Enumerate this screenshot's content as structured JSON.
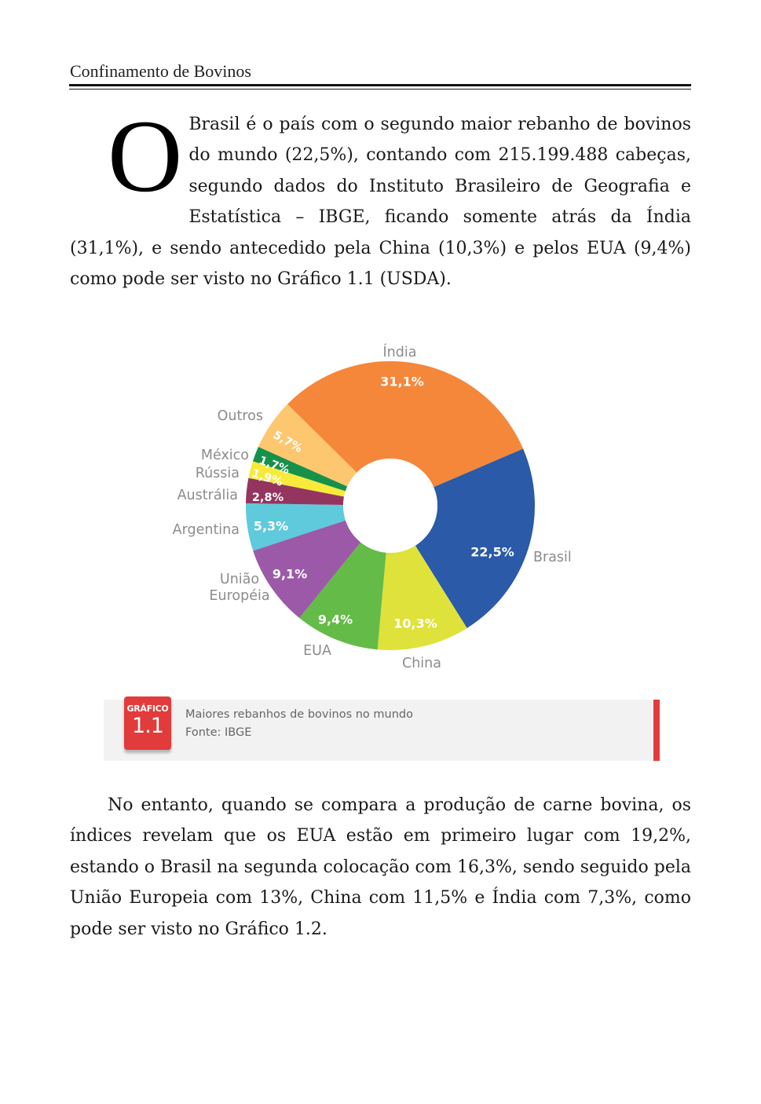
{
  "header": {
    "running_title": "Confinamento de Bovinos"
  },
  "intro": {
    "dropcap": "O",
    "text": "Brasil é o país com o segundo maior rebanho de bovinos do mundo (22,5%), contando com 215.199.488 cabeças, segundo dados do Instituto Brasileiro de Geografia e Estatística – IBGE, ficando somente atrás da Índia (31,1%), e sendo antecedido pela China (10,3%) e pelos EUA (9,4%) como pode ser visto no Gráfico 1.1 (USDA)."
  },
  "chart_data": {
    "type": "pie",
    "donut": true,
    "categories": [
      "Índia",
      "Brasil",
      "China",
      "EUA",
      "União Européia",
      "Argentina",
      "Austrália",
      "Rússia",
      "México",
      "Outros"
    ],
    "values": [
      31.1,
      22.5,
      10.3,
      9.4,
      9.1,
      5.3,
      2.8,
      1.9,
      1.7,
      5.7
    ],
    "value_labels": [
      "31,1%",
      "22,5%",
      "10,3%",
      "9,4%",
      "9,1%",
      "5,3%",
      "2,8%",
      "1,9%",
      "1,7%",
      "5,7%"
    ],
    "colors": [
      "#f5873a",
      "#2a5aa8",
      "#dfe23a",
      "#64bb47",
      "#9b59a8",
      "#5ecadb",
      "#94355f",
      "#f7ea3a",
      "#16914a",
      "#fdc76f"
    ],
    "label_colors": [
      "#ffffff",
      "#ffffff",
      "#ffffff",
      "#ffffff",
      "#ffffff",
      "#ffffff",
      "#ffffff",
      "#ffffff",
      "#ffffff",
      "#ffffff"
    ],
    "name_color": "#8c8c8c"
  },
  "caption": {
    "badge_label": "GRÁFICO",
    "badge_number": "1.1",
    "title": "Maiores rebanhos de bovinos no mundo",
    "source": "Fonte: IBGE"
  },
  "body": {
    "text": "No entanto, quando se compara a produção de carne bovina, os índices revelam que os EUA estão em primeiro lugar com 19,2%, estando o Brasil na segunda colocação com 16,3%, sendo seguido pela União Europeia com 13%, China com 11,5% e Índia com 7,3%, como pode ser visto no Gráfico 1.2."
  }
}
